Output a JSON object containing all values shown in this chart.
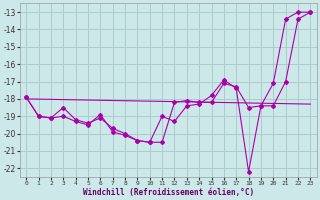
{
  "background_color": "#cce8e8",
  "grid_color": "#aacccc",
  "line_color": "#aa00aa",
  "ylim": [
    -22.5,
    -12.5
  ],
  "xlim": [
    -0.5,
    23.5
  ],
  "yticks": [
    -22,
    -21,
    -20,
    -19,
    -18,
    -17,
    -16,
    -15,
    -14,
    -13
  ],
  "xticks": [
    0,
    1,
    2,
    3,
    4,
    5,
    6,
    7,
    8,
    9,
    10,
    11,
    12,
    13,
    14,
    15,
    16,
    17,
    18,
    19,
    20,
    21,
    22,
    23
  ],
  "xlabel": "Windchill (Refroidissement éolien,°C)",
  "line1_x": [
    0,
    1,
    2,
    3,
    4,
    5,
    6,
    7,
    8,
    9,
    10,
    11,
    12,
    13,
    14,
    15,
    16,
    17,
    18,
    19,
    20,
    21,
    22,
    23
  ],
  "line1_y": [
    -17.9,
    -19.0,
    -19.1,
    -18.5,
    -19.2,
    -19.4,
    -19.1,
    -19.7,
    -20.0,
    -20.4,
    -20.5,
    -20.5,
    -18.2,
    -18.1,
    -18.2,
    -18.2,
    -17.1,
    -17.3,
    -18.5,
    -18.4,
    -18.4,
    -17.0,
    -13.4,
    -13.0
  ],
  "line2_x": [
    0,
    1,
    2,
    3,
    4,
    5,
    6,
    7,
    8,
    9,
    10,
    11,
    12,
    13,
    14,
    15,
    16,
    17,
    18,
    19,
    20,
    21,
    22,
    23
  ],
  "line2_y": [
    -17.9,
    -19.0,
    -19.1,
    -19.0,
    -19.3,
    -19.5,
    -18.9,
    -19.9,
    -20.1,
    -20.4,
    -20.5,
    -19.0,
    -19.3,
    -18.4,
    -18.3,
    -17.8,
    -16.9,
    -17.4,
    -22.2,
    -18.4,
    -17.1,
    -13.4,
    -13.0,
    -13.0
  ],
  "line3_x": [
    0,
    23
  ],
  "line3_y": [
    -18.0,
    -18.3
  ]
}
